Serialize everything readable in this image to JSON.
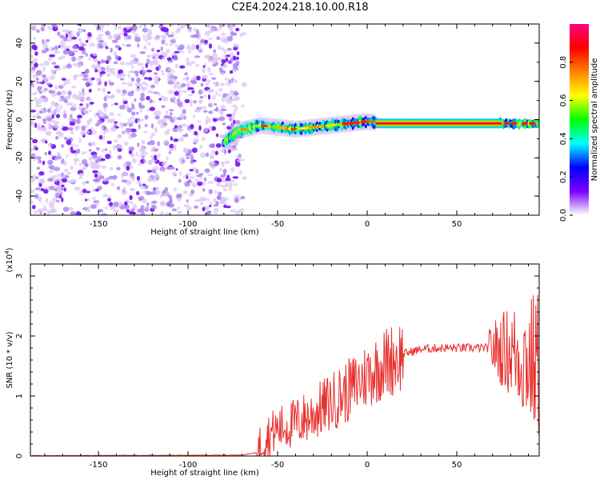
{
  "title": "C2E4.2024.218.10.00.R18",
  "chart_data": [
    {
      "type": "heatmap",
      "xlabel": "Height of straight line (km)",
      "ylabel": "Frequency (Hz)",
      "xlim": [
        -188,
        96
      ],
      "ylim": [
        -50,
        50
      ],
      "xticks": [
        -150,
        -100,
        -50,
        0,
        50
      ],
      "yticks": [
        -40,
        -20,
        0,
        20,
        40
      ],
      "colorbar": {
        "label": "Normalized spectral amplitude",
        "ticks": [
          "0.0",
          "0.2",
          "0.4",
          "0.6",
          "0.8"
        ],
        "range": [
          0,
          1
        ],
        "colors": [
          "#ffffff",
          "#7a00ff",
          "#0000ff",
          "#00ffff",
          "#00ff00",
          "#ffff00",
          "#ff8000",
          "#ff0000",
          "#ff0080"
        ]
      },
      "features": {
        "noise_region_x": [
          -188,
          -72
        ],
        "line_trace": [
          [
            -80,
            -12
          ],
          [
            -72,
            -6
          ],
          [
            -60,
            -3
          ],
          [
            -40,
            -5
          ],
          [
            -20,
            -3
          ],
          [
            -10,
            -2
          ],
          [
            0,
            -1
          ],
          [
            10,
            -2
          ],
          [
            50,
            -2
          ],
          [
            96,
            -2
          ]
        ]
      }
    },
    {
      "type": "line",
      "xlabel": "Height of straight line (km)",
      "ylabel": "SNR (10 * v/v)",
      "y_multiplier": "(x10",
      "y_multiplier_exp": "4",
      "xlim": [
        -188,
        96
      ],
      "ylim": [
        0,
        3.2
      ],
      "xticks": [
        -150,
        -100,
        -50,
        0,
        50
      ],
      "yticks": [
        0,
        1,
        2,
        3
      ],
      "color": "#e8302e",
      "envelope": [
        [
          -188,
          0.0
        ],
        [
          -70,
          0.01
        ],
        [
          -62,
          0.05
        ],
        [
          -58,
          0.3
        ],
        [
          -50,
          0.45
        ],
        [
          -40,
          0.55
        ],
        [
          -30,
          0.7
        ],
        [
          -20,
          0.9
        ],
        [
          -10,
          1.1
        ],
        [
          0,
          1.35
        ],
        [
          10,
          1.55
        ],
        [
          20,
          1.7
        ],
        [
          30,
          1.78
        ],
        [
          40,
          1.8
        ],
        [
          50,
          1.8
        ],
        [
          60,
          1.8
        ],
        [
          70,
          1.8
        ],
        [
          80,
          1.75
        ],
        [
          90,
          1.6
        ],
        [
          96,
          1.5
        ]
      ]
    }
  ]
}
